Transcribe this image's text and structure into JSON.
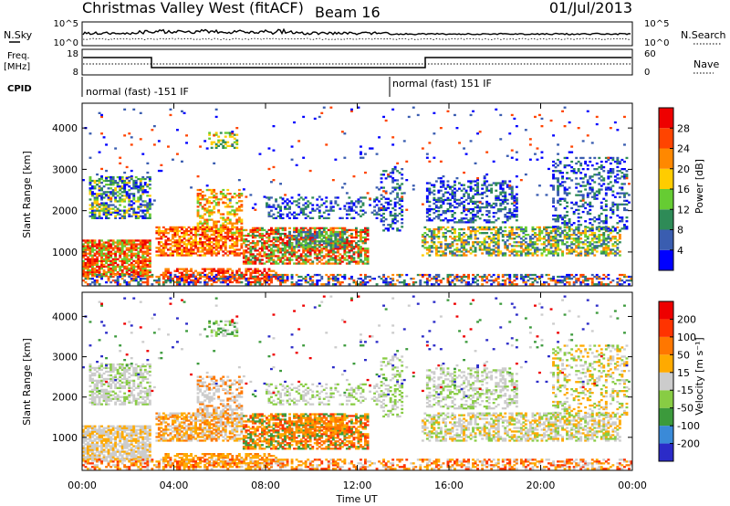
{
  "header": {
    "station": "Christmas Valley West (fitACF)",
    "beam": "Beam 16",
    "date": "01/Jul/2013"
  },
  "left_labels": {
    "nsky": "N.Sky",
    "freq_line1": "Freq.",
    "freq_line2": "[MHz]",
    "cpid": "CPID"
  },
  "right_labels": {
    "nsearch": "N.Search",
    "nave": "Nave"
  },
  "noise_panel": {
    "left_ticks": [
      "10^5",
      "10^0"
    ],
    "right_ticks": [
      "10^5",
      "10^0"
    ]
  },
  "freq_panel": {
    "left_ticks": [
      "18",
      "8"
    ],
    "right_ticks": [
      "60",
      "0"
    ]
  },
  "cpid_panel": {
    "segment_1": "normal (fast) -151 IF",
    "segment_2": "normal (fast) 151 IF"
  },
  "colors": {
    "power": [
      "#0000ff",
      "#3a5db0",
      "#2e8b57",
      "#66cc33",
      "#ffcc00",
      "#ff8800",
      "#ff4400",
      "#ee0000"
    ],
    "velocity": [
      "#2b2bc8",
      "#3a8ad8",
      "#3c9a3c",
      "#88cc44",
      "#cccccc",
      "#ffaa00",
      "#ff7700",
      "#ff3300",
      "#ee0000"
    ]
  },
  "chart_data": [
    {
      "type": "heatmap",
      "panel": "power",
      "ylabel": "Slant Range [km]",
      "y_ticks": [
        "1000",
        "2000",
        "3000",
        "4000"
      ],
      "ylim": [
        180,
        4600
      ],
      "x_range_hours": [
        0,
        24
      ],
      "colorbar_label": "Power [dB]",
      "colorbar_ticks": [
        "4",
        "8",
        "12",
        "16",
        "20",
        "24",
        "28"
      ],
      "colorbar_range": [
        0,
        32
      ]
    },
    {
      "type": "heatmap",
      "panel": "velocity",
      "ylabel": "Slant Range [km]",
      "y_ticks": [
        "1000",
        "2000",
        "3000",
        "4000"
      ],
      "ylim": [
        180,
        4600
      ],
      "xlabel": "Time UT",
      "x_ticks": [
        "00:00",
        "04:00",
        "08:00",
        "12:00",
        "16:00",
        "20:00",
        "00:00"
      ],
      "x_range_hours": [
        0,
        24
      ],
      "colorbar_label": "Velocity [m s⁻¹]",
      "colorbar_ticks": [
        "200",
        "100",
        "50",
        "15",
        "-15",
        "-50",
        "-100",
        "-200"
      ]
    }
  ]
}
